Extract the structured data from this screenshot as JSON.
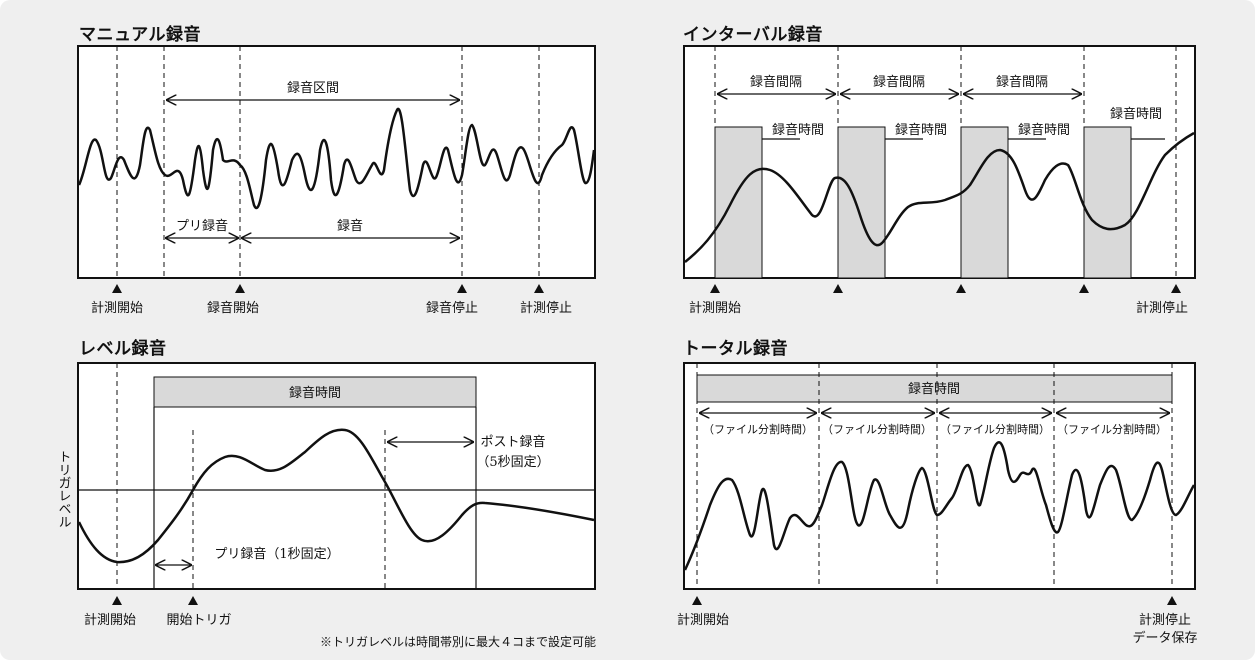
{
  "panels": {
    "manual": {
      "title": "マニュアル録音",
      "labels": {
        "section": "録音区間",
        "pre": "プリ録音",
        "rec": "録音",
        "start_measure": "計測開始",
        "rec_start": "録音開始",
        "rec_stop": "録音停止",
        "stop_measure": "計測停止"
      }
    },
    "interval": {
      "title": "インターバル録音",
      "labels": {
        "interval": "録音間隔",
        "rec_time": "録音時間",
        "start_measure": "計測開始",
        "stop_measure": "計測停止"
      }
    },
    "level": {
      "title": "レベル録音",
      "labels": {
        "rec_time": "録音時間",
        "post": "ポスト録音",
        "post_fixed": "（5秒固定）",
        "pre": "プリ録音（1秒固定）",
        "trigger_level": "トリガレベル",
        "start_measure": "計測開始",
        "start_trigger": "開始トリガ",
        "note": "※トリガレベルは時間帯別に最大４コまで設定可能"
      }
    },
    "total": {
      "title": "トータル録音",
      "labels": {
        "rec_time": "録音時間",
        "split": "（ファイル分割時間）",
        "start_measure": "計測開始",
        "stop_measure": "計測停止",
        "save": "データ保存"
      }
    }
  },
  "colors": {
    "background": "#efefef",
    "plot": "#ffffff",
    "shade": "#d9d9d9",
    "ink": "#111111"
  }
}
